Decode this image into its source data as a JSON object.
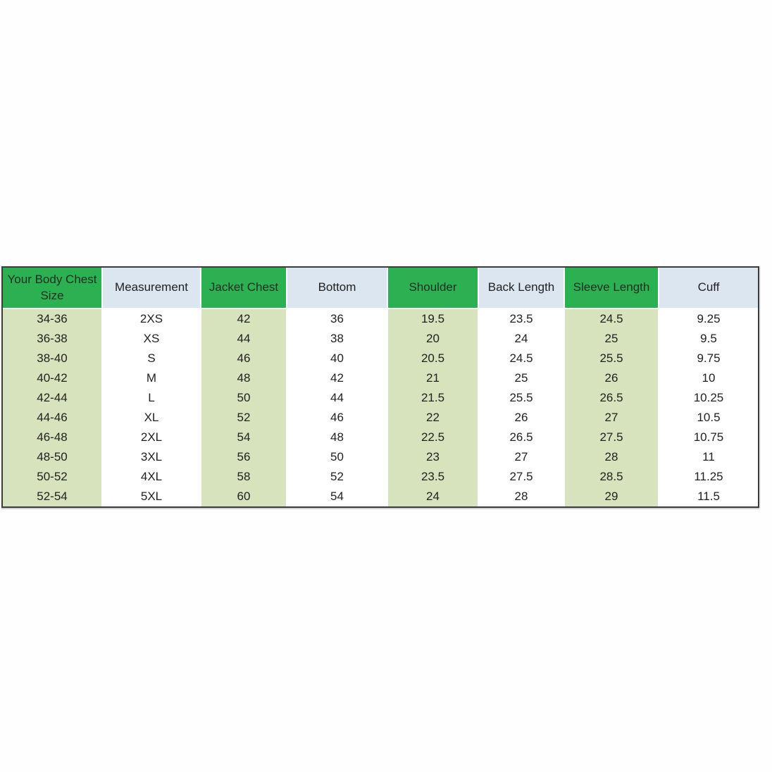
{
  "colors": {
    "header_green": "#2cb152",
    "header_green_text": "#1f2d22",
    "header_blue": "#dce6f1",
    "cell_green": "#d6e3bc",
    "cell_white": "#ffffff",
    "grid_white": "#ffffff",
    "outer_border": "#3b3b3b",
    "text": "#212121",
    "page_background": "#fefefe"
  },
  "chart_data": {
    "type": "table",
    "columns": [
      "Your Body Chest Size",
      "Measurement",
      "Jacket Chest",
      "Bottom",
      "Shoulder",
      "Back Length",
      "Sleeve Length",
      "Cuff"
    ],
    "rows": [
      [
        "34-36",
        "2XS",
        "42",
        "36",
        "19.5",
        "23.5",
        "24.5",
        "9.25"
      ],
      [
        "36-38",
        "XS",
        "44",
        "38",
        "20",
        "24",
        "25",
        "9.5"
      ],
      [
        "38-40",
        "S",
        "46",
        "40",
        "20.5",
        "24.5",
        "25.5",
        "9.75"
      ],
      [
        "40-42",
        "M",
        "48",
        "42",
        "21",
        "25",
        "26",
        "10"
      ],
      [
        "42-44",
        "L",
        "50",
        "44",
        "21.5",
        "25.5",
        "26.5",
        "10.25"
      ],
      [
        "44-46",
        "XL",
        "52",
        "46",
        "22",
        "26",
        "27",
        "10.5"
      ],
      [
        "46-48",
        "2XL",
        "54",
        "48",
        "22.5",
        "26.5",
        "27.5",
        "10.75"
      ],
      [
        "48-50",
        "3XL",
        "56",
        "50",
        "23",
        "27",
        "28",
        "11"
      ],
      [
        "50-52",
        "4XL",
        "58",
        "52",
        "23.5",
        "27.5",
        "28.5",
        "11.25"
      ],
      [
        "52-54",
        "5XL",
        "60",
        "54",
        "24",
        "28",
        "29",
        "11.5"
      ]
    ],
    "layout": {
      "grid": "white 2px gridlines between columns and under header",
      "column_header_fill_pattern": [
        "green",
        "blue",
        "green",
        "blue",
        "green",
        "blue",
        "green",
        "blue"
      ],
      "column_body_fill_pattern": [
        "light-green",
        "white",
        "light-green",
        "white",
        "light-green",
        "white",
        "light-green",
        "white"
      ]
    }
  }
}
